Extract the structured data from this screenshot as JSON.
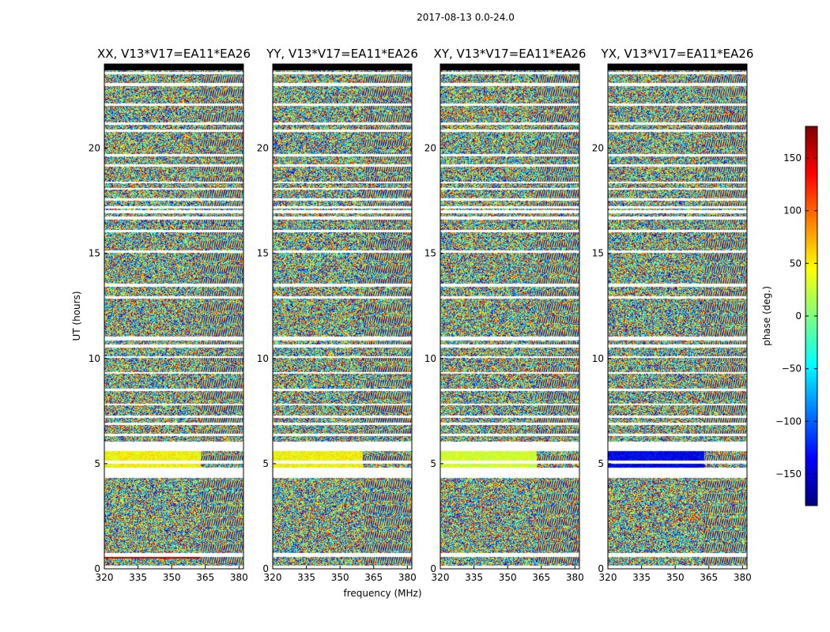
{
  "suptitle": "2017-08-13 0.0-24.0",
  "chart_data": [
    {
      "type": "heatmap",
      "title": "XX, V13*V17=EA11*EA26",
      "xlim": [
        320,
        382
      ],
      "ylim": [
        0,
        24
      ],
      "xticks": [
        320,
        335,
        350,
        365,
        380
      ],
      "yticks": [
        0,
        5,
        10,
        15,
        20
      ],
      "rfi_band_mhz": [
        363,
        382
      ],
      "bands": [
        {
          "from": 4.8,
          "to": 5.6,
          "phase_deg": 45
        },
        {
          "from": 0.5,
          "to": 0.6,
          "phase_deg": 160
        }
      ]
    },
    {
      "type": "heatmap",
      "title": "YY, V13*V17=EA11*EA26",
      "xlim": [
        320,
        382
      ],
      "ylim": [
        0,
        24
      ],
      "xticks": [
        320,
        335,
        350,
        365,
        380
      ],
      "yticks": [
        0,
        5,
        10,
        15,
        20
      ],
      "rfi_band_mhz": [
        360,
        382
      ],
      "bands": [
        {
          "from": 4.8,
          "to": 5.6,
          "phase_deg": 45
        }
      ]
    },
    {
      "type": "heatmap",
      "title": "XY, V13*V17=EA11*EA26",
      "xlim": [
        320,
        382
      ],
      "ylim": [
        0,
        24
      ],
      "xticks": [
        320,
        335,
        350,
        365,
        380
      ],
      "yticks": [
        0,
        5,
        10,
        15,
        20
      ],
      "rfi_band_mhz": [
        363,
        382
      ],
      "bands": [
        {
          "from": 4.8,
          "to": 5.6,
          "phase_deg": 30
        }
      ]
    },
    {
      "type": "heatmap",
      "title": "YX, V13*V17=EA11*EA26",
      "xlim": [
        320,
        382
      ],
      "ylim": [
        0,
        24
      ],
      "xticks": [
        320,
        335,
        350,
        365,
        380
      ],
      "yticks": [
        0,
        5,
        10,
        15,
        20
      ],
      "rfi_band_mhz": [
        363,
        382
      ],
      "bands": [
        {
          "from": 4.8,
          "to": 5.6,
          "phase_deg": -140
        }
      ]
    }
  ],
  "xlabel": "frequency (MHz)",
  "ylabel": "UT (hours)",
  "colorbar": {
    "label": "phase (deg.)",
    "range": [
      -180,
      180
    ],
    "ticks": [
      -150,
      -100,
      -50,
      0,
      50,
      100,
      150
    ],
    "tick_labels": [
      "−150",
      "−100",
      "−50",
      "0",
      "50",
      "100",
      "150"
    ],
    "colormap": "jet",
    "colors": [
      "#00007f",
      "#0000ff",
      "#007fff",
      "#00ffff",
      "#7fff7f",
      "#ffff00",
      "#ff7f00",
      "#ff0000",
      "#7f0000"
    ]
  },
  "data_gaps_ut": [
    [
      0.05,
      0.15
    ],
    [
      0.6,
      0.75
    ],
    [
      4.35,
      4.8
    ],
    [
      5.05,
      5.15
    ],
    [
      5.62,
      6.05
    ],
    [
      6.35,
      6.42
    ],
    [
      6.88,
      6.95
    ],
    [
      7.2,
      7.28
    ],
    [
      7.8,
      7.85
    ],
    [
      8.48,
      8.55
    ],
    [
      9.3,
      9.35
    ],
    [
      10.05,
      10.12
    ],
    [
      10.55,
      10.65
    ],
    [
      10.9,
      11.05
    ],
    [
      12.88,
      12.95
    ],
    [
      13.45,
      13.55
    ],
    [
      15.05,
      15.12
    ],
    [
      16.05,
      16.1
    ],
    [
      16.65,
      16.75
    ],
    [
      16.95,
      17.05
    ],
    [
      17.15,
      17.25
    ],
    [
      17.55,
      17.62
    ],
    [
      18.05,
      18.12
    ],
    [
      18.35,
      18.42
    ],
    [
      19.15,
      19.22
    ],
    [
      19.65,
      19.72
    ],
    [
      20.8,
      20.9
    ],
    [
      21.15,
      21.22
    ],
    [
      22.05,
      22.12
    ],
    [
      23.0,
      23.08
    ],
    [
      23.55,
      23.62
    ],
    [
      23.8,
      23.88
    ]
  ]
}
